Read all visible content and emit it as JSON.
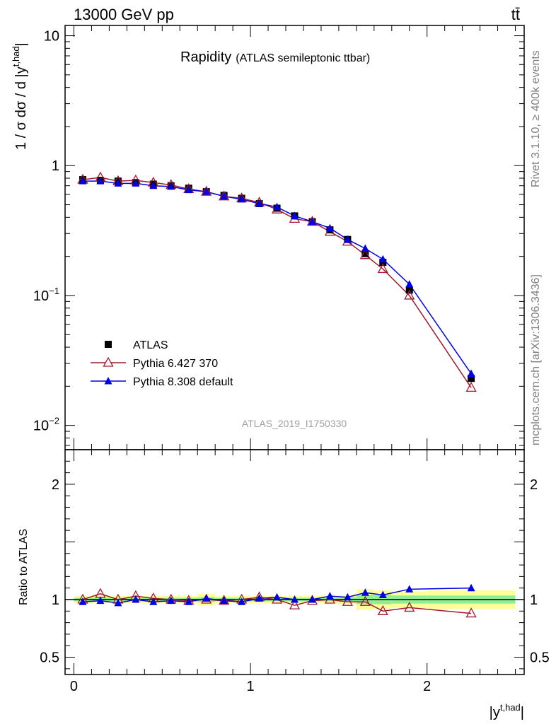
{
  "header": {
    "left_label": "13000 GeV pp",
    "right_label": "tt̄"
  },
  "side_labels": {
    "rivet": "Rivet 3.1.10, ≥ 400k events",
    "mcplots": "mcplots.cern.ch [arXiv:1306.3436]"
  },
  "colors": {
    "atlas": "#000000",
    "pythia6": "#a0192f",
    "pythia8": "#0000e6",
    "band_inner": "#90ee90",
    "band_outer": "#ffff99"
  },
  "chart_data": [
    {
      "type": "line",
      "title": "Rapidity",
      "subtitle": "(ATLAS semileptonic ttbar)",
      "ylabel": "1 / σ dσ / d |y^{t,had}|",
      "yscale": "log",
      "ylim": [
        0.0065,
        12
      ],
      "xlim": [
        -0.05,
        2.55
      ],
      "yticks": [
        {
          "v": 10,
          "base": "10",
          "exp": ""
        },
        {
          "v": 1,
          "base": "1",
          "exp": ""
        },
        {
          "v": 0.1,
          "base": "10",
          "exp": "−1"
        },
        {
          "v": 0.01,
          "base": "10",
          "exp": "−2"
        }
      ],
      "legend_position": "lower-left",
      "watermark": "ATLAS_2019_I1750330",
      "x": [
        0.05,
        0.15,
        0.25,
        0.35,
        0.45,
        0.55,
        0.65,
        0.75,
        0.85,
        0.95,
        1.05,
        1.15,
        1.25,
        1.35,
        1.45,
        1.55,
        1.65,
        1.75,
        1.9,
        2.25
      ],
      "series": [
        {
          "name": "ATLAS",
          "key": "atlas",
          "marker": "square",
          "values": [
            0.78,
            0.77,
            0.76,
            0.74,
            0.72,
            0.7,
            0.67,
            0.63,
            0.59,
            0.56,
            0.51,
            0.47,
            0.41,
            0.37,
            0.32,
            0.27,
            0.21,
            0.18,
            0.11,
            0.023
          ]
        },
        {
          "name": "Pythia 6.427 370",
          "key": "pythia6",
          "marker": "open-triangle",
          "values": [
            0.78,
            0.81,
            0.76,
            0.77,
            0.74,
            0.71,
            0.66,
            0.63,
            0.58,
            0.56,
            0.52,
            0.46,
            0.39,
            0.37,
            0.31,
            0.26,
            0.205,
            0.16,
            0.1,
            0.0195
          ]
        },
        {
          "name": "Pythia 8.308 default",
          "key": "pythia8",
          "marker": "filled-triangle",
          "values": [
            0.76,
            0.76,
            0.73,
            0.73,
            0.7,
            0.69,
            0.65,
            0.63,
            0.58,
            0.55,
            0.51,
            0.48,
            0.41,
            0.37,
            0.33,
            0.27,
            0.23,
            0.19,
            0.122,
            0.025
          ]
        }
      ]
    },
    {
      "type": "line",
      "ylabel": "Ratio to ATLAS",
      "xlabel": "|y^{t,had}|",
      "ylim": [
        0.35,
        2.3
      ],
      "xlim": [
        -0.05,
        2.55
      ],
      "yticks": [
        2,
        1,
        0.5
      ],
      "ytick_labels": [
        "2",
        "1",
        "0.5"
      ],
      "xticks": [
        0,
        1,
        2
      ],
      "xtick_labels": [
        "0",
        "1",
        "2"
      ],
      "x": [
        0.05,
        0.15,
        0.25,
        0.35,
        0.45,
        0.55,
        0.65,
        0.75,
        0.85,
        0.95,
        1.05,
        1.15,
        1.25,
        1.35,
        1.45,
        1.55,
        1.65,
        1.75,
        1.9,
        2.25
      ],
      "series": [
        {
          "name": "Pythia 6.427 370",
          "key": "pythia6",
          "marker": "open-triangle",
          "values": [
            1.0,
            1.05,
            1.0,
            1.03,
            1.01,
            1.0,
            0.99,
            1.0,
            0.99,
            1.0,
            1.02,
            1.0,
            0.95,
            0.99,
            1.0,
            0.98,
            0.98,
            0.9,
            0.93,
            0.88
          ]
        },
        {
          "name": "Pythia 8.308 default",
          "key": "pythia8",
          "marker": "filled-triangle",
          "values": [
            0.98,
            0.99,
            0.97,
            1.0,
            0.98,
            0.99,
            0.98,
            1.01,
            0.99,
            0.98,
            1.01,
            1.02,
            1.0,
            1.0,
            1.03,
            1.02,
            1.06,
            1.04,
            1.09,
            1.1
          ]
        }
      ],
      "uncertainty_bins": [
        {
          "x0": 0.0,
          "x1": 0.1,
          "inner": 0.015,
          "outer": 0.03
        },
        {
          "x0": 0.1,
          "x1": 0.2,
          "inner": 0.015,
          "outer": 0.03
        },
        {
          "x0": 0.2,
          "x1": 0.3,
          "inner": 0.015,
          "outer": 0.03
        },
        {
          "x0": 0.3,
          "x1": 0.4,
          "inner": 0.015,
          "outer": 0.03
        },
        {
          "x0": 0.4,
          "x1": 0.5,
          "inner": 0.015,
          "outer": 0.03
        },
        {
          "x0": 0.5,
          "x1": 0.6,
          "inner": 0.015,
          "outer": 0.03
        },
        {
          "x0": 0.6,
          "x1": 0.7,
          "inner": 0.015,
          "outer": 0.03
        },
        {
          "x0": 0.7,
          "x1": 0.8,
          "inner": 0.02,
          "outer": 0.05
        },
        {
          "x0": 0.8,
          "x1": 0.9,
          "inner": 0.015,
          "outer": 0.03
        },
        {
          "x0": 0.9,
          "x1": 1.0,
          "inner": 0.015,
          "outer": 0.03
        },
        {
          "x0": 1.0,
          "x1": 1.1,
          "inner": 0.015,
          "outer": 0.03
        },
        {
          "x0": 1.1,
          "x1": 1.2,
          "inner": 0.015,
          "outer": 0.03
        },
        {
          "x0": 1.2,
          "x1": 1.3,
          "inner": 0.015,
          "outer": 0.03
        },
        {
          "x0": 1.3,
          "x1": 1.4,
          "inner": 0.015,
          "outer": 0.03
        },
        {
          "x0": 1.4,
          "x1": 1.5,
          "inner": 0.015,
          "outer": 0.035
        },
        {
          "x0": 1.5,
          "x1": 1.6,
          "inner": 0.02,
          "outer": 0.04
        },
        {
          "x0": 1.6,
          "x1": 1.7,
          "inner": 0.04,
          "outer": 0.09
        },
        {
          "x0": 1.7,
          "x1": 1.8,
          "inner": 0.04,
          "outer": 0.08
        },
        {
          "x0": 1.8,
          "x1": 2.0,
          "inner": 0.035,
          "outer": 0.07
        },
        {
          "x0": 2.0,
          "x1": 2.5,
          "inner": 0.035,
          "outer": 0.08
        }
      ]
    }
  ]
}
